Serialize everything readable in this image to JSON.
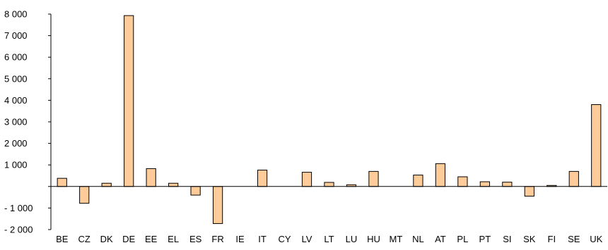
{
  "chart_data": {
    "type": "bar",
    "categories": [
      "BE",
      "CZ",
      "DK",
      "DE",
      "EE",
      "EL",
      "ES",
      "FR",
      "IE",
      "IT",
      "CY",
      "LV",
      "LT",
      "LU",
      "HU",
      "MT",
      "NL",
      "AT",
      "PL",
      "PT",
      "SI",
      "SK",
      "FI",
      "SE",
      "UK"
    ],
    "values": [
      380,
      -780,
      150,
      7930,
      830,
      150,
      -400,
      -1720,
      0,
      760,
      0,
      660,
      190,
      80,
      700,
      0,
      530,
      1060,
      450,
      220,
      200,
      -450,
      50,
      700,
      3800
    ],
    "ylim": [
      -2000,
      8000
    ],
    "yticks": [
      -2000,
      -1000,
      0,
      1000,
      2000,
      3000,
      4000,
      5000,
      6000,
      7000,
      8000
    ],
    "ytick_labels": [
      "- 2 000",
      "- 1 000",
      "",
      "1 000",
      "2 000",
      "3 000",
      "4 000",
      "5 000",
      "6 000",
      "7 000",
      "8 000"
    ],
    "title": "",
    "xlabel": "",
    "ylabel": "",
    "grid": false,
    "bar_color": "#FFCC99"
  }
}
